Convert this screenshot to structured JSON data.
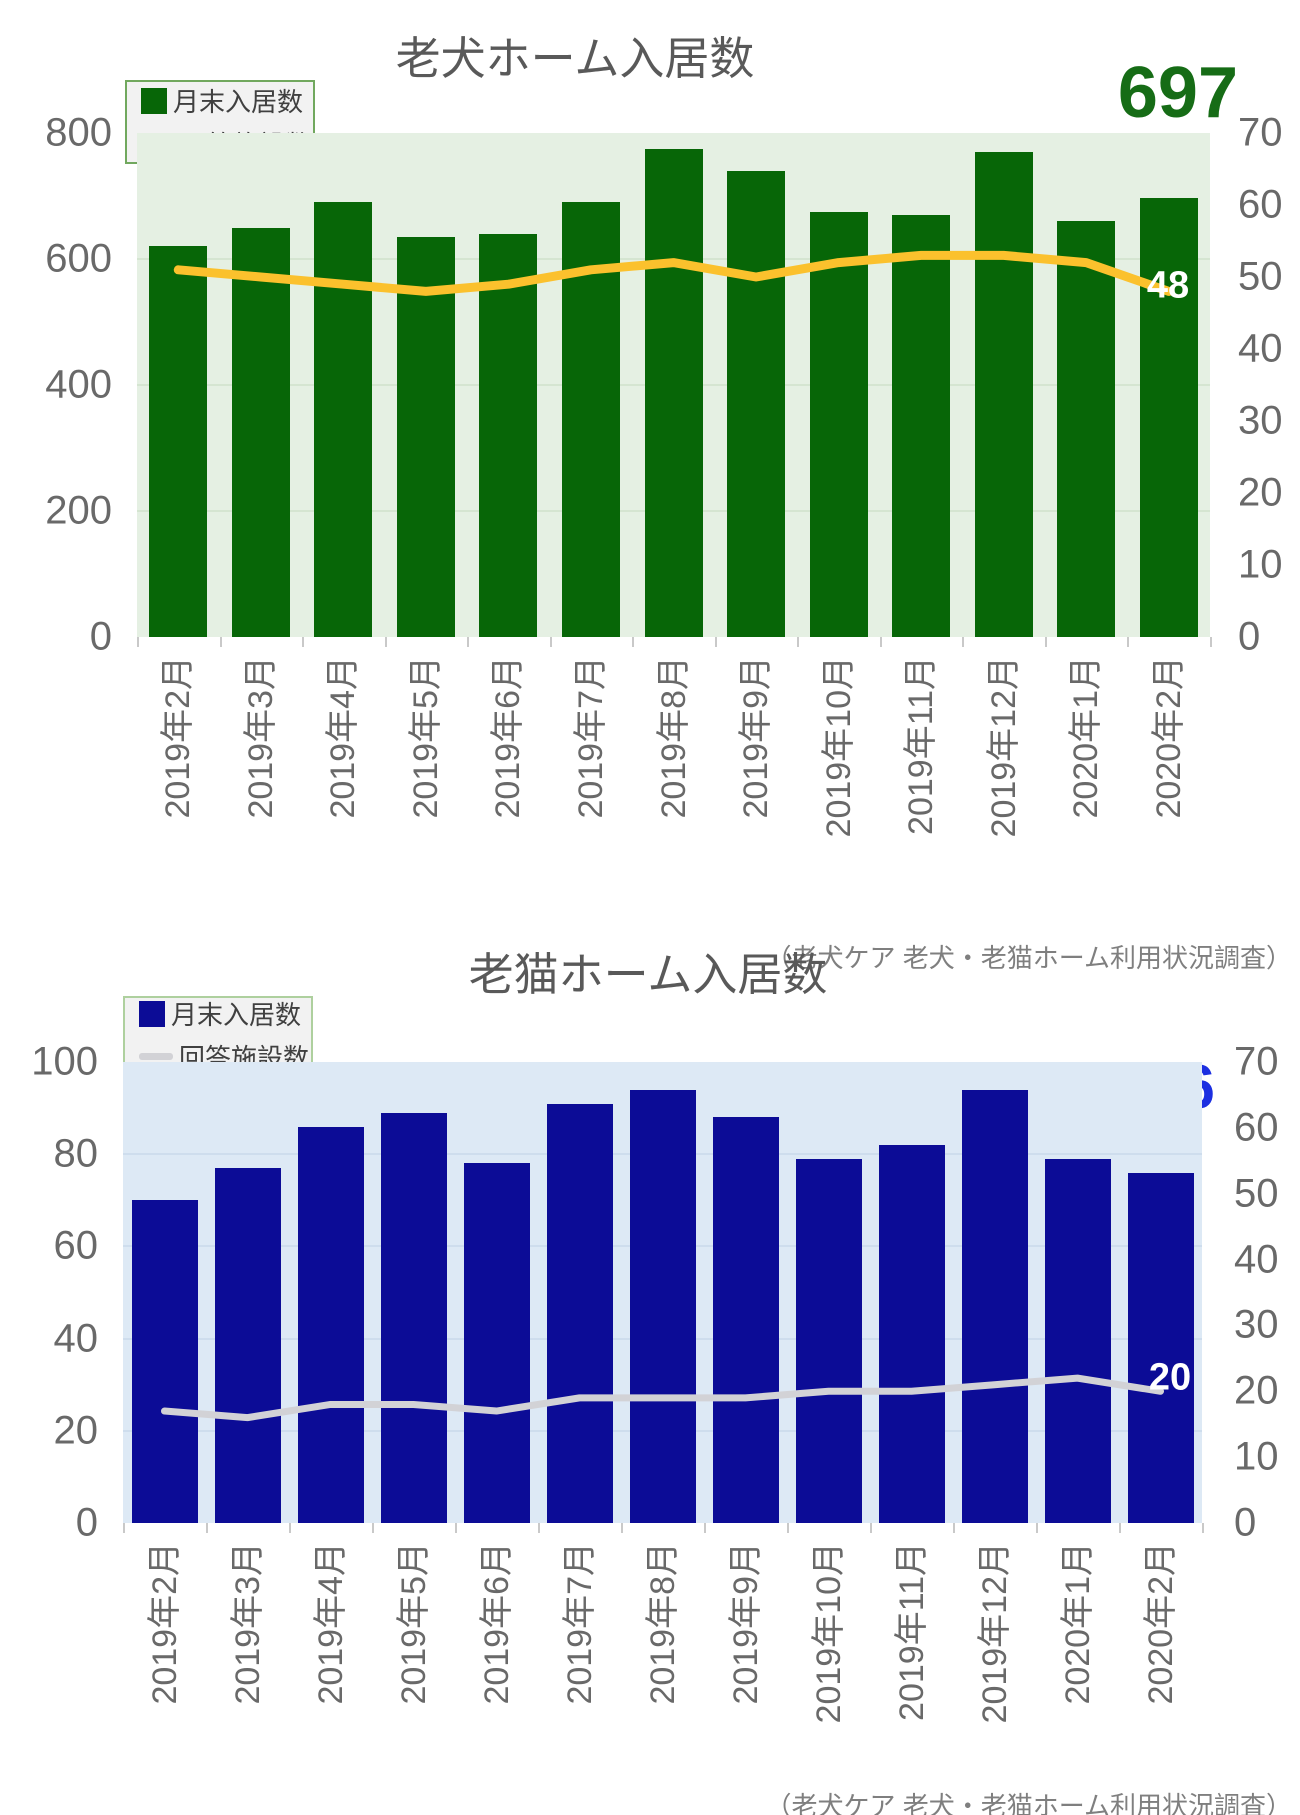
{
  "chart_data": [
    {
      "type": "bar",
      "title": "老犬ホーム入居数",
      "big_value": "697",
      "big_value_color": "#166c16",
      "line_end_label": "48",
      "legend": {
        "bar_label": "月末入居数",
        "line_label": "回答施設数",
        "border_color": "#71a85e"
      },
      "categories": [
        "2019年2月",
        "2019年3月",
        "2019年4月",
        "2019年5月",
        "2019年6月",
        "2019年7月",
        "2019年8月",
        "2019年9月",
        "2019年10月",
        "2019年11月",
        "2019年12月",
        "2020年1月",
        "2020年2月"
      ],
      "series": [
        {
          "name": "月末入居数",
          "axis": "left",
          "values": [
            620,
            650,
            690,
            635,
            640,
            690,
            775,
            740,
            675,
            670,
            770,
            660,
            697
          ]
        },
        {
          "name": "回答施設数",
          "axis": "right",
          "values": [
            51,
            50,
            49,
            48,
            49,
            51,
            52,
            50,
            52,
            53,
            53,
            52,
            48
          ]
        }
      ],
      "left_ticks": [
        800,
        600,
        400,
        200,
        0
      ],
      "right_ticks": [
        70,
        60,
        50,
        40,
        30,
        20,
        10,
        0
      ],
      "ylim_left": [
        0,
        800
      ],
      "ylim_right": [
        0,
        70
      ],
      "grid_values": [
        600,
        400,
        200
      ],
      "bar_color": "#076607",
      "line_color": "#fbc12d",
      "plot_bg": "#e5f0e3",
      "grid_color": "#d5e5d1",
      "source": "（老犬ケア 老犬・老猫ホーム利用状況調査）"
    },
    {
      "type": "bar",
      "title": "老猫ホーム入居数",
      "big_value": "76",
      "big_value_color": "#1c2fe1",
      "line_end_label": "20",
      "legend": {
        "bar_label": "月末入居数",
        "line_label": "回答施設数",
        "border_color": "#aed09e"
      },
      "categories": [
        "2019年2月",
        "2019年3月",
        "2019年4月",
        "2019年5月",
        "2019年6月",
        "2019年7月",
        "2019年8月",
        "2019年9月",
        "2019年10月",
        "2019年11月",
        "2019年12月",
        "2020年1月",
        "2020年2月"
      ],
      "series": [
        {
          "name": "月末入居数",
          "axis": "left",
          "values": [
            70,
            77,
            86,
            89,
            78,
            91,
            94,
            88,
            79,
            82,
            94,
            79,
            76
          ]
        },
        {
          "name": "回答施設数",
          "axis": "right",
          "values": [
            17,
            16,
            18,
            18,
            17,
            19,
            19,
            19,
            20,
            20,
            21,
            22,
            20
          ]
        }
      ],
      "left_ticks": [
        100,
        80,
        60,
        40,
        20,
        0
      ],
      "right_ticks": [
        70,
        60,
        50,
        40,
        30,
        20,
        10,
        0
      ],
      "ylim_left": [
        0,
        100
      ],
      "ylim_right": [
        0,
        70
      ],
      "grid_values": [
        80,
        60,
        40,
        20
      ],
      "bar_color": "#0c0c96",
      "line_color": "#d2d2d6",
      "plot_bg": "#dde9f5",
      "grid_color": "#cedded",
      "source": "（老犬ケア 老犬・老猫ホーム利用状況調査）"
    }
  ]
}
